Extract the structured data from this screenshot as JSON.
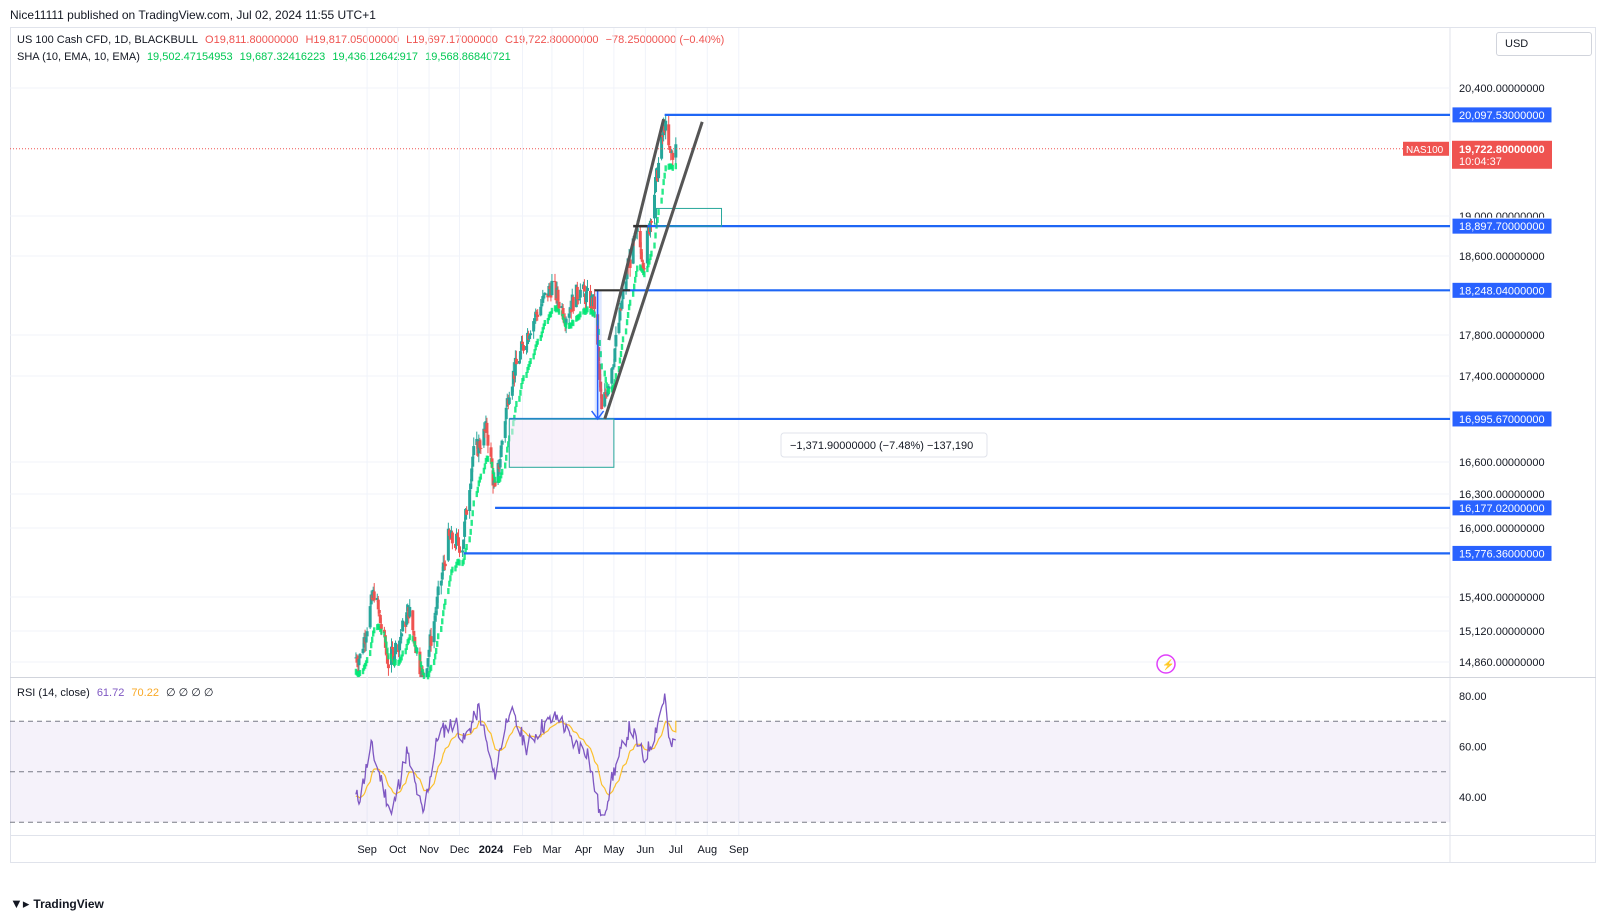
{
  "header": {
    "published": "Nice11111 published on TradingView.com, Jul 02, 2024 11:55 UTC+1"
  },
  "legend": {
    "symbol": "US 100 Cash CFD, 1D, BLACKBULL",
    "open": "O19,811.80000000",
    "high": "H19,817.05000000",
    "low": "L19,697.17000000",
    "close": "C19,722.80000000",
    "change": "−78.25000000 (−0.40%)",
    "sha_label": "SHA (10, EMA, 10, EMA)",
    "sha_values": [
      "19,502.47154953",
      "19,687.32416223",
      "19,436.12642917",
      "19,568.86840721"
    ],
    "rsi_label": "RSI (14, close)",
    "rsi_value": "61.72",
    "rsi_ma": "70.22",
    "rsi_extra": "∅ ∅ ∅ ∅"
  },
  "currency_button": "USD",
  "footer": {
    "brand": "TradingView"
  },
  "colors": {
    "up": "#26a69a",
    "down": "#ef5350",
    "sha": "#00e676",
    "level": "#2962ff",
    "rsi": "#7e57c2",
    "rsi_ma": "#fbc02d",
    "trend": "#555555"
  },
  "chart_data": {
    "type": "candlestick",
    "symbol": "NAS100",
    "last_price": "19,722.80000000",
    "countdown": "10:04:37",
    "y_ticks": [
      "20,400.00000000",
      "19,000.00000000",
      "18,600.00000000",
      "17,800.00000000",
      "17,400.00000000",
      "16,600.00000000",
      "16,300.00000000",
      "16,000.00000000",
      "15,400.00000000",
      "15,120.00000000",
      "14,860.00000000"
    ],
    "x_ticks": [
      "Sep",
      "Oct",
      "Nov",
      "Dec",
      "2024",
      "Feb",
      "Mar",
      "Apr",
      "May",
      "Jun",
      "Jul",
      "Aug",
      "Sep"
    ],
    "levels": [
      {
        "value": 20097.53,
        "label": "20,097.53000000"
      },
      {
        "value": 18897.7,
        "label": "18,897.70000000"
      },
      {
        "value": 18248.04,
        "label": "18,248.04000000"
      },
      {
        "value": 16995.67,
        "label": "16,995.67000000"
      },
      {
        "value": 16177.02,
        "label": "16,177.02000000"
      },
      {
        "value": 15776.36,
        "label": "15,776.36000000"
      }
    ],
    "measure_label": "−1,371.90000000 (−7.48%) −137,190",
    "price_anchors": [
      {
        "date": "2023-08-25",
        "v": 14900
      },
      {
        "date": "2023-09-08",
        "v": 15450
      },
      {
        "date": "2023-09-22",
        "v": 14850
      },
      {
        "date": "2023-10-03",
        "v": 15050
      },
      {
        "date": "2023-10-12",
        "v": 15300
      },
      {
        "date": "2023-10-26",
        "v": 14700
      },
      {
        "date": "2023-11-06",
        "v": 15200
      },
      {
        "date": "2023-11-20",
        "v": 15900
      },
      {
        "date": "2023-12-04",
        "v": 15850
      },
      {
        "date": "2023-12-14",
        "v": 16650
      },
      {
        "date": "2023-12-28",
        "v": 16900
      },
      {
        "date": "2024-01-05",
        "v": 16300
      },
      {
        "date": "2024-01-19",
        "v": 17300
      },
      {
        "date": "2024-02-09",
        "v": 17900
      },
      {
        "date": "2024-03-01",
        "v": 18300
      },
      {
        "date": "2024-03-14",
        "v": 18000
      },
      {
        "date": "2024-03-28",
        "v": 18250
      },
      {
        "date": "2024-04-12",
        "v": 18100
      },
      {
        "date": "2024-04-19",
        "v": 17050
      },
      {
        "date": "2024-05-01",
        "v": 17600
      },
      {
        "date": "2024-05-15",
        "v": 18500
      },
      {
        "date": "2024-05-24",
        "v": 18800
      },
      {
        "date": "2024-05-31",
        "v": 18550
      },
      {
        "date": "2024-06-12",
        "v": 19400
      },
      {
        "date": "2024-06-20",
        "v": 20000
      },
      {
        "date": "2024-06-25",
        "v": 19650
      },
      {
        "date": "2024-07-01",
        "v": 19722.8
      }
    ],
    "rsi": {
      "levels": [
        70,
        50,
        30
      ],
      "y_ticks": [
        "80.00",
        "60.00",
        "40.00"
      ],
      "anchors": [
        {
          "date": "2023-08-25",
          "v": 40
        },
        {
          "date": "2023-09-05",
          "v": 60
        },
        {
          "date": "2023-09-25",
          "v": 33
        },
        {
          "date": "2023-10-10",
          "v": 58
        },
        {
          "date": "2023-10-26",
          "v": 33
        },
        {
          "date": "2023-11-10",
          "v": 65
        },
        {
          "date": "2023-11-27",
          "v": 70
        },
        {
          "date": "2023-12-05",
          "v": 62
        },
        {
          "date": "2023-12-20",
          "v": 75
        },
        {
          "date": "2024-01-04",
          "v": 48
        },
        {
          "date": "2024-01-19",
          "v": 75
        },
        {
          "date": "2024-02-05",
          "v": 60
        },
        {
          "date": "2024-02-20",
          "v": 68
        },
        {
          "date": "2024-03-08",
          "v": 72
        },
        {
          "date": "2024-03-20",
          "v": 62
        },
        {
          "date": "2024-04-05",
          "v": 58
        },
        {
          "date": "2024-04-19",
          "v": 30
        },
        {
          "date": "2024-05-01",
          "v": 50
        },
        {
          "date": "2024-05-17",
          "v": 68
        },
        {
          "date": "2024-05-31",
          "v": 55
        },
        {
          "date": "2024-06-10",
          "v": 65
        },
        {
          "date": "2024-06-20",
          "v": 80
        },
        {
          "date": "2024-06-25",
          "v": 60
        },
        {
          "date": "2024-07-01",
          "v": 61.72
        }
      ]
    }
  }
}
